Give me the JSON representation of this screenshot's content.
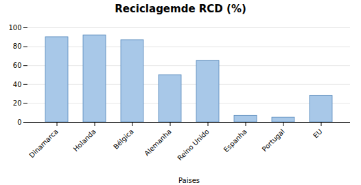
{
  "chart_data": {
    "type": "bar",
    "title": "Reciclagemde RCD (%)",
    "xlabel": "Paises",
    "categories": [
      "Dinamarca",
      "Holanda",
      "Bélgica",
      "Alemanha",
      "Reino Unido",
      "Espanha",
      "Portugal",
      "EU"
    ],
    "values": [
      90,
      92,
      87,
      50,
      65,
      7,
      5,
      28
    ],
    "color": "#a8c8e8",
    "ylim": [
      0,
      100
    ],
    "yticks": [
      0,
      20,
      40,
      60,
      80,
      100
    ],
    "grid": true
  }
}
